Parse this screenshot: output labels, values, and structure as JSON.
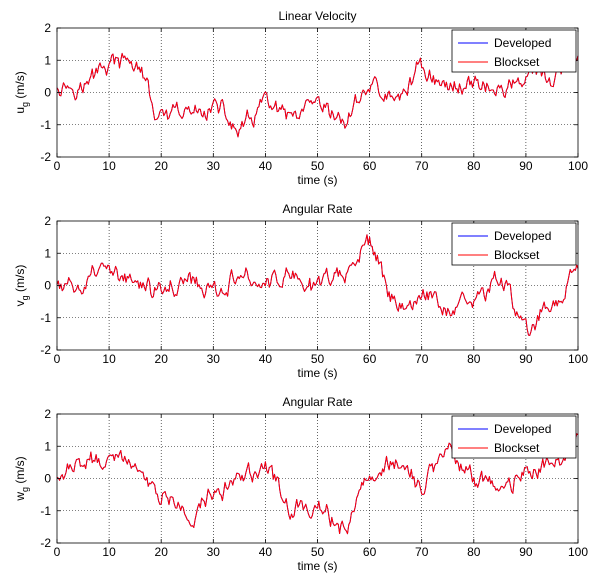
{
  "chart_data": [
    {
      "type": "line",
      "title": "Linear Velocity",
      "xlabel": "time (s)",
      "ylabel_main": "u",
      "ylabel_sub": "g",
      "ylabel_unit": "(m/s)",
      "xlim": [
        0,
        100
      ],
      "ylim": [
        -2,
        2
      ],
      "xticks": [
        "0",
        "10",
        "20",
        "30",
        "40",
        "50",
        "60",
        "70",
        "80",
        "90",
        "100"
      ],
      "yticks": [
        "-2",
        "-1",
        "0",
        "1",
        "2"
      ],
      "grid": true,
      "legend_position": "top-right",
      "x_step": 5,
      "series": [
        {
          "name": "Developed",
          "color": "#0000ff",
          "x": [
            0,
            5,
            10,
            15,
            20,
            25,
            30,
            35,
            40,
            45,
            50,
            55,
            60,
            65,
            70,
            75,
            80,
            85,
            90,
            95,
            100
          ],
          "values": [
            0.3,
            0.2,
            0.9,
            0.9,
            -0.9,
            -0.7,
            -0.4,
            -1.2,
            -0.4,
            -0.9,
            -0.6,
            -0.9,
            0.2,
            -0.3,
            0.8,
            0.1,
            0.4,
            0.0,
            0.5,
            0.4,
            0.9
          ]
        },
        {
          "name": "Blockset",
          "color": "#ff0000",
          "x": [
            0,
            5,
            10,
            15,
            20,
            25,
            30,
            35,
            40,
            45,
            50,
            55,
            60,
            65,
            70,
            75,
            80,
            85,
            90,
            95,
            100
          ],
          "values": [
            0.3,
            0.2,
            0.9,
            0.9,
            -0.9,
            -0.7,
            -0.4,
            -1.2,
            -0.4,
            -0.9,
            -0.6,
            -0.9,
            0.2,
            -0.3,
            0.8,
            0.1,
            0.4,
            0.0,
            0.5,
            0.4,
            0.9
          ]
        }
      ]
    },
    {
      "type": "line",
      "title": "Angular Rate",
      "xlabel": "time (s)",
      "ylabel_main": "v",
      "ylabel_sub": "g",
      "ylabel_unit": "(m/s)",
      "xlim": [
        0,
        100
      ],
      "ylim": [
        -2,
        2
      ],
      "xticks": [
        "0",
        "10",
        "20",
        "30",
        "40",
        "50",
        "60",
        "70",
        "80",
        "90",
        "100"
      ],
      "yticks": [
        "-2",
        "-1",
        "0",
        "1",
        "2"
      ],
      "grid": true,
      "legend_position": "top-right",
      "x_step": 5,
      "series": [
        {
          "name": "Developed",
          "color": "#0000ff",
          "x": [
            0,
            5,
            10,
            15,
            20,
            25,
            30,
            35,
            40,
            45,
            50,
            55,
            60,
            65,
            70,
            75,
            80,
            85,
            90,
            95,
            100
          ],
          "values": [
            -0.1,
            0.0,
            0.4,
            0.0,
            -0.2,
            0.1,
            -0.2,
            0.5,
            0.0,
            0.2,
            0.0,
            0.5,
            1.3,
            -0.6,
            -0.3,
            -0.8,
            -0.3,
            0.2,
            -1.3,
            -0.8,
            0.6
          ]
        },
        {
          "name": "Blockset",
          "color": "#ff0000",
          "x": [
            0,
            5,
            10,
            15,
            20,
            25,
            30,
            35,
            40,
            45,
            50,
            55,
            60,
            65,
            70,
            75,
            80,
            85,
            90,
            95,
            100
          ],
          "values": [
            -0.1,
            0.0,
            0.4,
            0.0,
            -0.2,
            0.1,
            -0.2,
            0.5,
            0.0,
            0.2,
            0.0,
            0.5,
            1.3,
            -0.6,
            -0.3,
            -0.8,
            -0.3,
            0.2,
            -1.3,
            -0.8,
            0.6
          ]
        }
      ]
    },
    {
      "type": "line",
      "title": "Angular Rate",
      "xlabel": "time (s)",
      "ylabel_main": "w",
      "ylabel_sub": "g",
      "ylabel_unit": "(m/s)",
      "xlim": [
        0,
        100
      ],
      "ylim": [
        -2,
        2
      ],
      "xticks": [
        "0",
        "10",
        "20",
        "30",
        "40",
        "50",
        "60",
        "70",
        "80",
        "90",
        "100"
      ],
      "yticks": [
        "-2",
        "-1",
        "0",
        "1",
        "2"
      ],
      "grid": true,
      "legend_position": "top-right",
      "x_step": 5,
      "series": [
        {
          "name": "Developed",
          "color": "#0000ff",
          "x": [
            0,
            5,
            10,
            15,
            20,
            25,
            30,
            35,
            40,
            45,
            50,
            55,
            60,
            65,
            70,
            75,
            80,
            85,
            90,
            95,
            100
          ],
          "values": [
            0.2,
            0.5,
            0.6,
            0.5,
            -0.7,
            -1.0,
            -0.6,
            0.0,
            0.4,
            -0.9,
            -1.0,
            -1.4,
            0.0,
            0.5,
            -0.1,
            0.9,
            0.0,
            -0.4,
            0.2,
            0.5,
            1.2
          ]
        },
        {
          "name": "Blockset",
          "color": "#ff0000",
          "x": [
            0,
            5,
            10,
            15,
            20,
            25,
            30,
            35,
            40,
            45,
            50,
            55,
            60,
            65,
            70,
            75,
            80,
            85,
            90,
            95,
            100
          ],
          "values": [
            0.2,
            0.5,
            0.6,
            0.5,
            -0.7,
            -1.0,
            -0.6,
            0.0,
            0.4,
            -0.9,
            -1.0,
            -1.4,
            0.0,
            0.5,
            -0.1,
            0.9,
            0.0,
            -0.4,
            0.2,
            0.5,
            1.2
          ]
        }
      ]
    }
  ]
}
